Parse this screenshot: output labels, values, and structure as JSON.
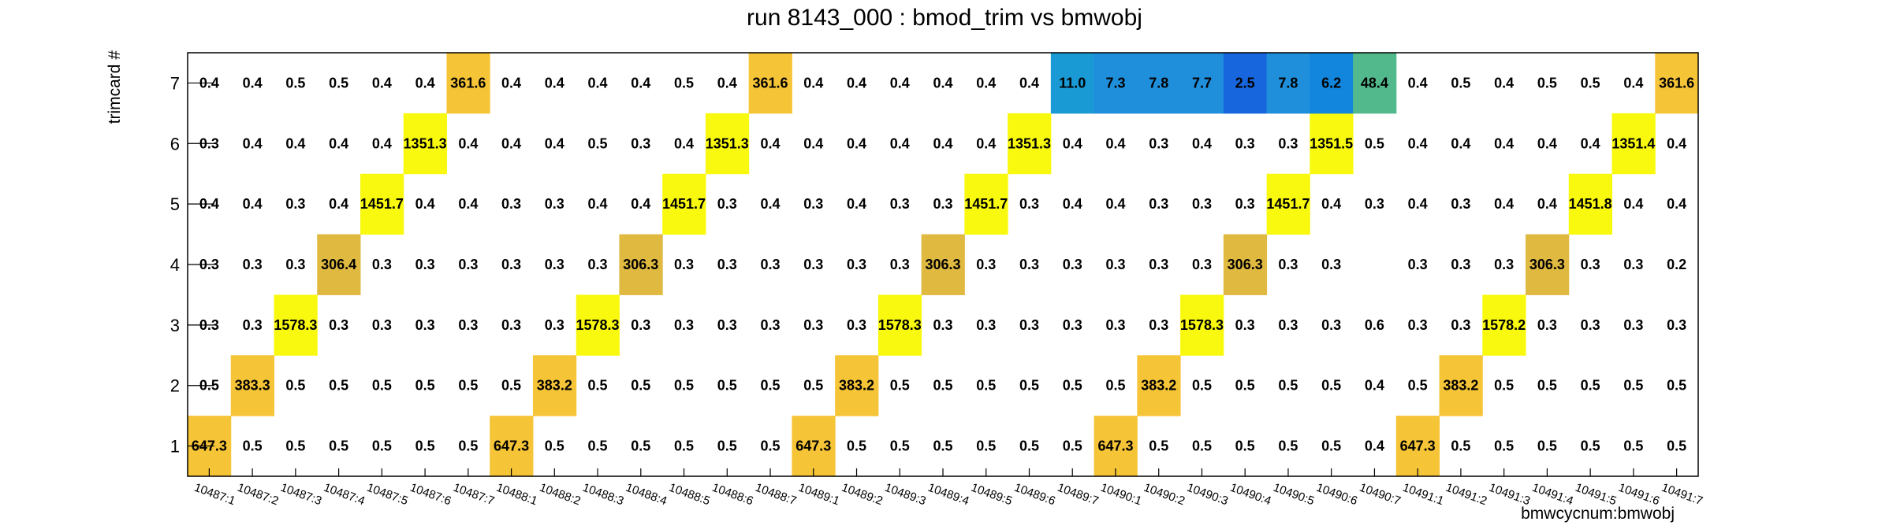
{
  "chart_data": {
    "type": "heatmap",
    "title": "run 8143_000 : bmod_trim vs bmwobj",
    "xlabel": "bmwcycnum:bmwobj",
    "ylabel": "trimcard #",
    "x": [
      "10487:1",
      "10487:2",
      "10487:3",
      "10487:4",
      "10487:5",
      "10487:6",
      "10487:7",
      "10488:1",
      "10488:2",
      "10488:3",
      "10488:4",
      "10488:5",
      "10488:6",
      "10488:7",
      "10489:1",
      "10489:2",
      "10489:3",
      "10489:4",
      "10489:5",
      "10489:6",
      "10489:7",
      "10490:1",
      "10490:2",
      "10490:3",
      "10490:4",
      "10490:5",
      "10490:6",
      "10490:7",
      "10491:1",
      "10491:2",
      "10491:3",
      "10491:4",
      "10491:5",
      "10491:6",
      "10491:7"
    ],
    "y": [
      "1",
      "2",
      "3",
      "4",
      "5",
      "6",
      "7"
    ],
    "rows": [
      {
        "trimcard": "1",
        "values": [
          647.3,
          0.5,
          0.5,
          0.5,
          0.5,
          0.5,
          0.5,
          647.3,
          0.5,
          0.5,
          0.5,
          0.5,
          0.5,
          0.5,
          647.3,
          0.5,
          0.5,
          0.5,
          0.5,
          0.5,
          0.5,
          647.3,
          0.5,
          0.5,
          0.5,
          0.5,
          0.5,
          0.4,
          647.3,
          0.5,
          0.5,
          0.5,
          0.5,
          0.5,
          0.5
        ]
      },
      {
        "trimcard": "2",
        "values": [
          0.5,
          383.3,
          0.5,
          0.5,
          0.5,
          0.5,
          0.5,
          0.5,
          383.2,
          0.5,
          0.5,
          0.5,
          0.5,
          0.5,
          0.5,
          383.2,
          0.5,
          0.5,
          0.5,
          0.5,
          0.5,
          0.5,
          383.2,
          0.5,
          0.5,
          0.5,
          0.5,
          0.4,
          0.5,
          383.2,
          0.5,
          0.5,
          0.5,
          0.5,
          0.5
        ]
      },
      {
        "trimcard": "3",
        "values": [
          0.3,
          0.3,
          1578.3,
          0.3,
          0.3,
          0.3,
          0.3,
          0.3,
          0.3,
          1578.3,
          0.3,
          0.3,
          0.3,
          0.3,
          0.3,
          0.3,
          1578.3,
          0.3,
          0.3,
          0.3,
          0.3,
          0.3,
          0.3,
          1578.3,
          0.3,
          0.3,
          0.3,
          0.6,
          0.3,
          0.3,
          1578.2,
          0.3,
          0.3,
          0.3,
          0.3
        ]
      },
      {
        "trimcard": "4",
        "values": [
          0.3,
          0.3,
          0.3,
          306.4,
          0.3,
          0.3,
          0.3,
          0.3,
          0.3,
          0.3,
          306.3,
          0.3,
          0.3,
          0.3,
          0.3,
          0.3,
          0.3,
          306.3,
          0.3,
          0.3,
          0.3,
          0.3,
          0.3,
          0.3,
          306.3,
          0.3,
          0.3,
          null,
          0.3,
          0.3,
          0.3,
          306.3,
          0.3,
          0.3,
          0.2
        ]
      },
      {
        "trimcard": "5",
        "values": [
          0.4,
          0.4,
          0.3,
          0.4,
          1451.7,
          0.4,
          0.4,
          0.3,
          0.3,
          0.4,
          0.4,
          1451.7,
          0.3,
          0.4,
          0.3,
          0.4,
          0.3,
          0.3,
          1451.7,
          0.3,
          0.4,
          0.4,
          0.3,
          0.3,
          0.3,
          1451.7,
          0.4,
          0.3,
          0.4,
          0.3,
          0.4,
          0.4,
          1451.8,
          0.4,
          0.4
        ]
      },
      {
        "trimcard": "6",
        "values": [
          0.3,
          0.4,
          0.4,
          0.4,
          0.4,
          1351.3,
          0.4,
          0.4,
          0.4,
          0.5,
          0.3,
          0.4,
          1351.3,
          0.4,
          0.4,
          0.4,
          0.4,
          0.4,
          0.4,
          1351.3,
          0.4,
          0.4,
          0.3,
          0.4,
          0.3,
          0.3,
          1351.5,
          0.5,
          0.4,
          0.4,
          0.4,
          0.4,
          0.4,
          1351.4,
          0.4
        ]
      },
      {
        "trimcard": "7",
        "values": [
          0.4,
          0.4,
          0.5,
          0.5,
          0.4,
          0.4,
          361.6,
          0.4,
          0.4,
          0.4,
          0.4,
          0.5,
          0.4,
          361.6,
          0.4,
          0.4,
          0.4,
          0.4,
          0.4,
          0.4,
          11.0,
          7.3,
          7.8,
          7.7,
          2.5,
          7.8,
          6.2,
          48.4,
          0.4,
          0.5,
          0.4,
          0.5,
          0.5,
          0.4,
          361.6
        ]
      }
    ],
    "colors": {
      "low": "#ffffff",
      "very_high": "#f9f90f",
      "high": "#f6c437",
      "mid_high": "#e0b941",
      "blue_1": "#1f8fdc",
      "blue_2": "#1a9ad5",
      "blue_3": "#1766de",
      "blue_4": "#1186dc",
      "green": "#52b98d"
    }
  }
}
